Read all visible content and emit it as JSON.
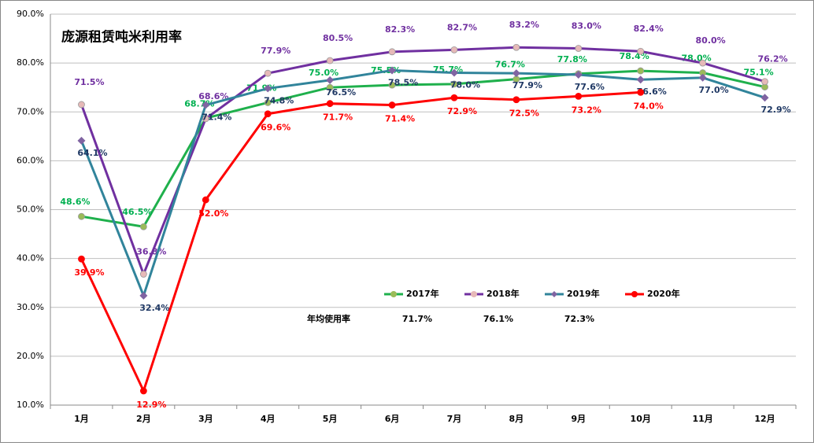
{
  "chart_data": {
    "type": "line",
    "title": "庞源租赁吨米利用率",
    "categories": [
      "1月",
      "2月",
      "3月",
      "4月",
      "5月",
      "6月",
      "7月",
      "8月",
      "9月",
      "10月",
      "11月",
      "12月"
    ],
    "series": [
      {
        "name": "2017年",
        "color": "#1fb04c",
        "marker_color": "#9bbb59",
        "label_color": "#00b050",
        "marker": "circle",
        "values": [
          48.6,
          46.5,
          68.7,
          71.9,
          75.0,
          75.5,
          75.7,
          76.7,
          77.8,
          78.4,
          78.0,
          75.1
        ],
        "value_labels": [
          "48.6%",
          "46.5%",
          "68.7%",
          "71.9%",
          "75.0%",
          "75.5%",
          "75.7%",
          "76.7%",
          "77.8%",
          "78.4%",
          "78.0%",
          "75.1%"
        ]
      },
      {
        "name": "2018年",
        "color": "#7030a0",
        "marker_color": "#e6b9b8",
        "label_color": "#7030a0",
        "marker": "circle",
        "values": [
          71.5,
          36.8,
          68.6,
          77.9,
          80.5,
          82.3,
          82.7,
          83.2,
          83.0,
          82.4,
          80.0,
          76.2
        ],
        "value_labels": [
          "71.5%",
          "36.8%",
          "68.6%",
          "77.9%",
          "80.5%",
          "82.3%",
          "82.7%",
          "83.2%",
          "83.0%",
          "82.4%",
          "80.0%",
          "76.2%"
        ]
      },
      {
        "name": "2019年",
        "color": "#31849b",
        "marker_color": "#8064a2",
        "label_color": "#1f3864",
        "marker": "diamond",
        "values": [
          64.1,
          32.4,
          71.4,
          74.8,
          76.5,
          78.5,
          78.0,
          77.9,
          77.6,
          76.6,
          77.0,
          72.9
        ],
        "value_labels": [
          "64.1%",
          "32.4%",
          "71.4%",
          "74.8%",
          "76.5%",
          "78.5%",
          "78.0%",
          "77.9%",
          "77.6%",
          "76.6%",
          "77.0%",
          "72.9%"
        ]
      },
      {
        "name": "2020年",
        "color": "#ff0000",
        "marker_color": "#ff0000",
        "label_color": "#ff0000",
        "marker": "circle",
        "values": [
          39.9,
          12.9,
          52.0,
          69.6,
          71.7,
          71.4,
          72.9,
          72.5,
          73.2,
          74.0,
          null,
          null
        ],
        "value_labels": [
          "39.9%",
          "12.9%",
          "52.0%",
          "69.6%",
          "71.7%",
          "71.4%",
          "72.9%",
          "72.5%",
          "73.2%",
          "74.0%",
          null,
          null
        ]
      }
    ],
    "ylim": [
      10,
      90
    ],
    "yticks": [
      {
        "value": 10,
        "label": "10.0%"
      },
      {
        "value": 20,
        "label": "20.0%"
      },
      {
        "value": 30,
        "label": "30.0%"
      },
      {
        "value": 40,
        "label": "40.0%"
      },
      {
        "value": 50,
        "label": "50.0%"
      },
      {
        "value": 60,
        "label": "60.0%"
      },
      {
        "value": 70,
        "label": "70.0%"
      },
      {
        "value": 80,
        "label": "80.0%"
      },
      {
        "value": 90,
        "label": "90.0%"
      }
    ],
    "grid": true,
    "legend": "center",
    "annotation": {
      "label": "年均使用率",
      "values": [
        "71.7%",
        "76.1%",
        "72.3%"
      ]
    }
  }
}
